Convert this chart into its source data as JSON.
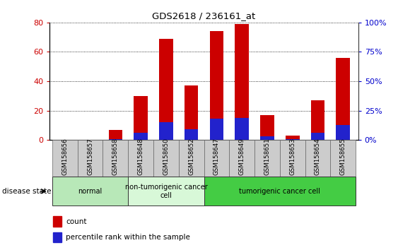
{
  "title": "GDS2618 / 236161_at",
  "samples": [
    "GSM158656",
    "GSM158657",
    "GSM158658",
    "GSM158648",
    "GSM158650",
    "GSM158652",
    "GSM158647",
    "GSM158649",
    "GSM158651",
    "GSM158653",
    "GSM158654",
    "GSM158655"
  ],
  "count_values": [
    0,
    0,
    7,
    30,
    69,
    37,
    74,
    79,
    17,
    3,
    27,
    56
  ],
  "percentile_values": [
    0,
    0,
    1,
    6,
    15,
    9,
    18,
    19,
    3,
    1,
    6,
    13
  ],
  "ylim_left": [
    0,
    80
  ],
  "ylim_right": [
    0,
    100
  ],
  "yticks_left": [
    0,
    20,
    40,
    60,
    80
  ],
  "yticks_right": [
    0,
    25,
    50,
    75,
    100
  ],
  "ytick_labels_right": [
    "0%",
    "25%",
    "50%",
    "75%",
    "100%"
  ],
  "bar_color_count": "#cc0000",
  "bar_color_percentile": "#2222cc",
  "bar_width": 0.55,
  "background_plot": "#ffffff",
  "tick_label_color_left": "#cc0000",
  "tick_label_color_right": "#0000cc",
  "groups": [
    {
      "label": "normal",
      "start": 0,
      "end": 3,
      "color": "#b8e8b8"
    },
    {
      "label": "non-tumorigenic cancer\ncell",
      "start": 3,
      "end": 6,
      "color": "#d8f8d8"
    },
    {
      "label": "tumorigenic cancer cell",
      "start": 6,
      "end": 12,
      "color": "#44cc44"
    }
  ],
  "disease_state_label": "disease state",
  "legend_count_label": "count",
  "legend_percentile_label": "percentile rank within the sample"
}
